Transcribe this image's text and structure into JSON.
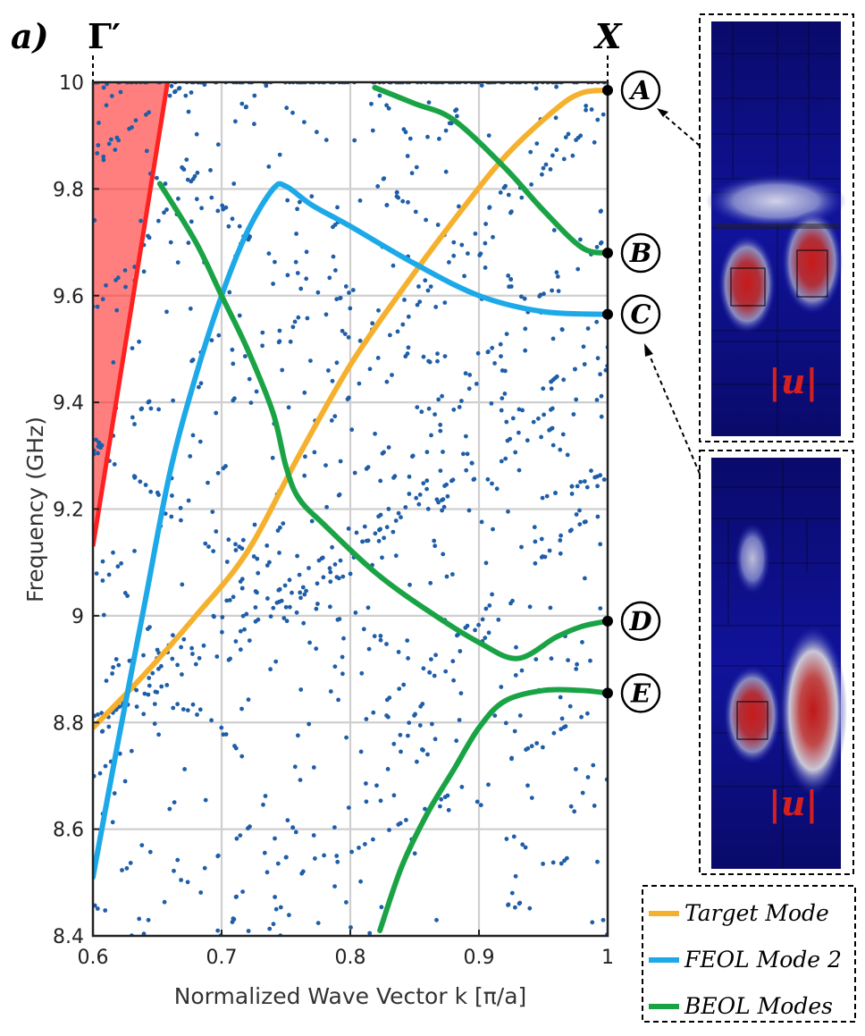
{
  "panel_label": "a)",
  "chart_data": {
    "type": "line",
    "title": "",
    "xlabel": "Normalized Wave Vector k [π/a]",
    "ylabel": "Frequency (GHz)",
    "xlim": [
      0.6,
      1.0
    ],
    "ylim": [
      8.4,
      10.0
    ],
    "xticks": [
      "0.6",
      "0.7",
      "0.8",
      "0.9",
      "1"
    ],
    "yticks": [
      "8.4",
      "8.6",
      "8.8",
      "9",
      "9.2",
      "9.4",
      "9.6",
      "9.8",
      "10"
    ],
    "grid": true,
    "top_labels": {
      "left": "Γ′",
      "right": "X"
    },
    "light_cone": {
      "color": "#ff3030",
      "boundary": [
        [
          0.6,
          9.13
        ],
        [
          0.658,
          10.0
        ]
      ]
    },
    "series": [
      {
        "name": "Target Mode",
        "color": "#f5b12e",
        "points": [
          [
            0.6,
            8.79
          ],
          [
            0.64,
            8.89
          ],
          [
            0.68,
            9.0
          ],
          [
            0.72,
            9.12
          ],
          [
            0.76,
            9.3
          ],
          [
            0.8,
            9.47
          ],
          [
            0.84,
            9.61
          ],
          [
            0.88,
            9.74
          ],
          [
            0.92,
            9.86
          ],
          [
            0.96,
            9.95
          ],
          [
            0.98,
            9.98
          ],
          [
            1.0,
            9.985
          ]
        ]
      },
      {
        "name": "FEOL Mode 2",
        "color": "#1da9e8",
        "points": [
          [
            0.6,
            8.51
          ],
          [
            0.62,
            8.77
          ],
          [
            0.64,
            9.02
          ],
          [
            0.66,
            9.27
          ],
          [
            0.68,
            9.45
          ],
          [
            0.7,
            9.6
          ],
          [
            0.72,
            9.72
          ],
          [
            0.74,
            9.8
          ],
          [
            0.75,
            9.805
          ],
          [
            0.77,
            9.77
          ],
          [
            0.8,
            9.73
          ],
          [
            0.85,
            9.66
          ],
          [
            0.9,
            9.6
          ],
          [
            0.95,
            9.57
          ],
          [
            1.0,
            9.565
          ]
        ]
      },
      {
        "name": "BEOL Modes",
        "color": "#1aa345",
        "segments": [
          [
            [
              0.819,
              9.99
            ],
            [
              0.85,
              9.96
            ],
            [
              0.88,
              9.93
            ],
            [
              0.92,
              9.84
            ],
            [
              0.95,
              9.76
            ],
            [
              0.98,
              9.69
            ],
            [
              1.0,
              9.68
            ]
          ],
          [
            [
              0.652,
              9.81
            ],
            [
              0.68,
              9.7
            ],
            [
              0.7,
              9.6
            ],
            [
              0.72,
              9.5
            ],
            [
              0.74,
              9.38
            ],
            [
              0.75,
              9.28
            ],
            [
              0.76,
              9.22
            ],
            [
              0.78,
              9.17
            ],
            [
              0.82,
              9.08
            ],
            [
              0.86,
              9.01
            ],
            [
              0.9,
              8.95
            ],
            [
              0.93,
              8.92
            ],
            [
              0.96,
              8.96
            ],
            [
              0.98,
              8.98
            ],
            [
              1.0,
              8.99
            ]
          ],
          [
            [
              0.823,
              8.41
            ],
            [
              0.84,
              8.53
            ],
            [
              0.86,
              8.63
            ],
            [
              0.88,
              8.71
            ],
            [
              0.9,
              8.79
            ],
            [
              0.92,
              8.84
            ],
            [
              0.95,
              8.86
            ],
            [
              0.98,
              8.86
            ],
            [
              1.0,
              8.855
            ]
          ]
        ]
      }
    ],
    "scatter": {
      "color": "#1e5ea8",
      "count": 1200,
      "description_value_range": [
        8.4,
        10.0
      ]
    },
    "markers": [
      {
        "label": "A",
        "freq": 9.985
      },
      {
        "label": "B",
        "freq": 9.68
      },
      {
        "label": "C",
        "freq": 9.565
      },
      {
        "label": "D",
        "freq": 8.99
      },
      {
        "label": "E",
        "freq": 8.855
      }
    ],
    "insets": [
      {
        "label": "|u|",
        "points_to": "A"
      },
      {
        "label": "|u|",
        "points_to": "C"
      }
    ],
    "legend": {
      "position": "bottom-right",
      "entries": [
        {
          "label": "Target Mode",
          "color": "#f5b12e"
        },
        {
          "label": "FEOL Mode 2",
          "color": "#1da9e8"
        },
        {
          "label": "BEOL Modes",
          "color": "#1aa345"
        }
      ]
    }
  }
}
